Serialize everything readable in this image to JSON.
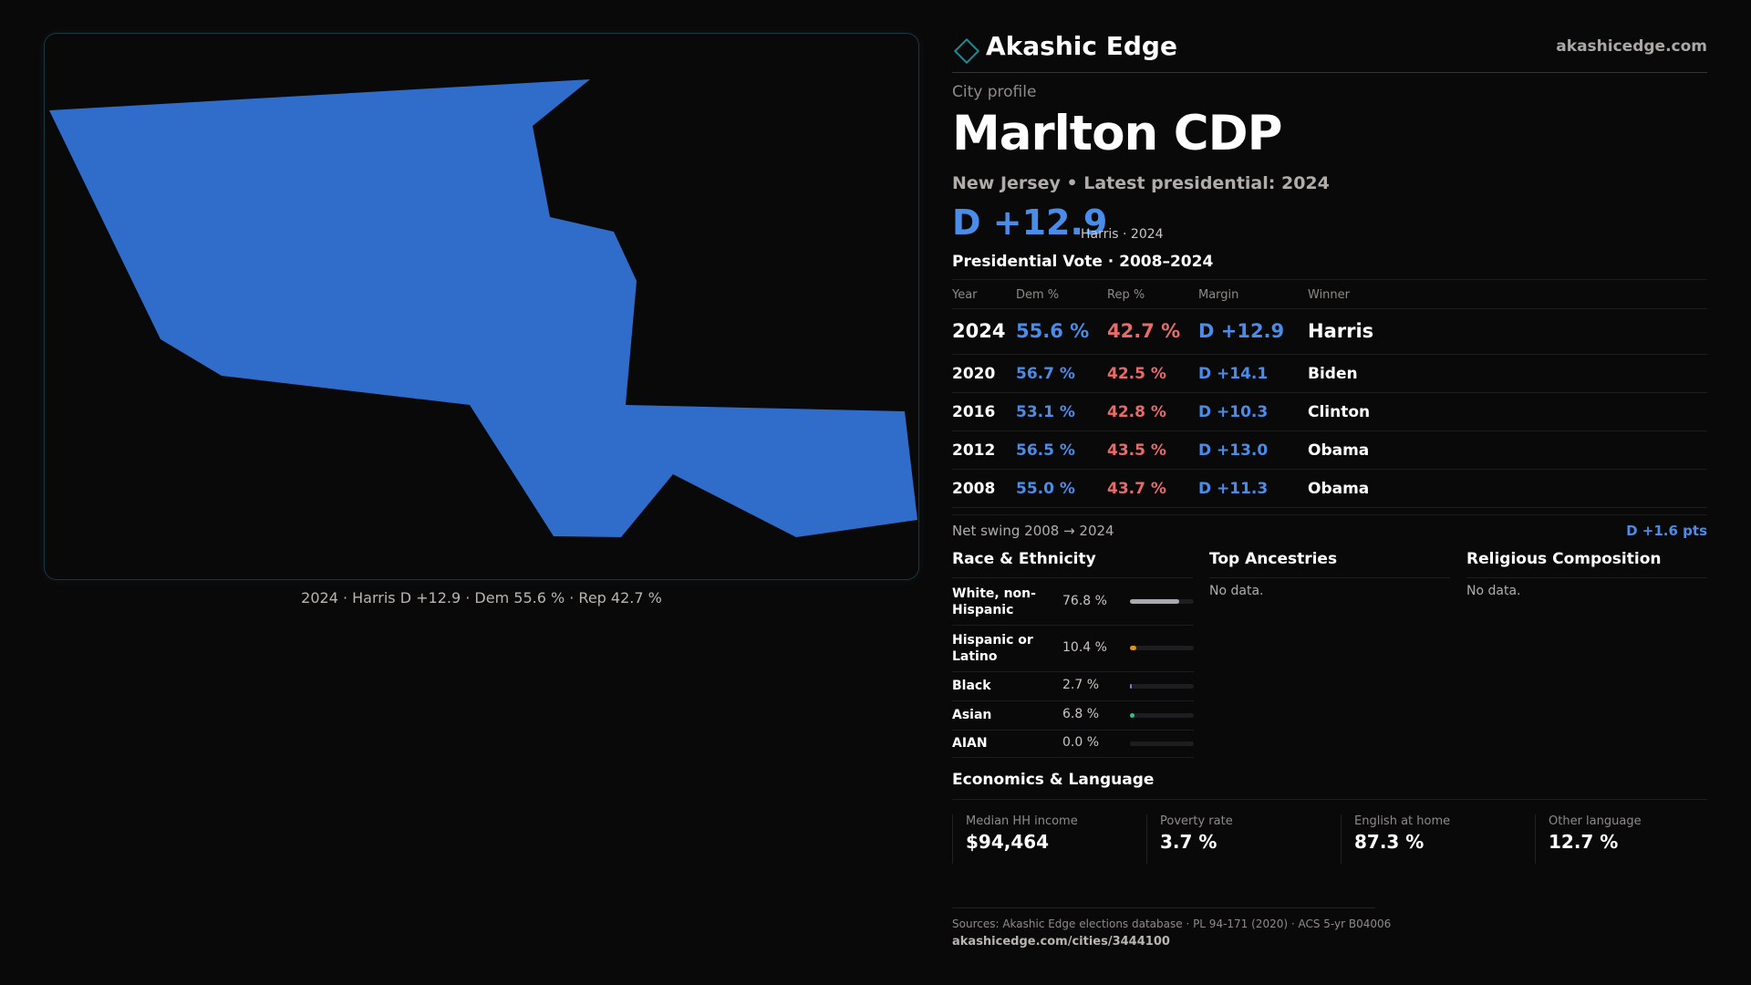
{
  "map": {
    "fill_color": "#306cca",
    "caption": "2024 · Harris D +12.9 · Dem 55.6 % · Rep 42.7 %"
  },
  "header": {
    "brand_icon": "diamond-icon",
    "brand_name": "Akashic Edge",
    "site_url": "akashicedge.com"
  },
  "profile": {
    "eyebrow": "City profile",
    "title": "Marlton CDP",
    "subtitle": "New Jersey • Latest presidential: 2024",
    "headline_margin": "D +12.9",
    "headline_note": "Harris · 2024"
  },
  "vote": {
    "section_title": "Presidential Vote · 2008–2024",
    "columns": [
      "Year",
      "Dem %",
      "Rep %",
      "Margin",
      "Winner"
    ],
    "rows": [
      {
        "year": "2024",
        "dem": "55.6 %",
        "rep": "42.7 %",
        "margin": "D +12.9",
        "winner": "Harris"
      },
      {
        "year": "2020",
        "dem": "56.7 %",
        "rep": "42.5 %",
        "margin": "D +14.1",
        "winner": "Biden"
      },
      {
        "year": "2016",
        "dem": "53.1 %",
        "rep": "42.8 %",
        "margin": "D +10.3",
        "winner": "Clinton"
      },
      {
        "year": "2012",
        "dem": "56.5 %",
        "rep": "43.5 %",
        "margin": "D +13.0",
        "winner": "Obama"
      },
      {
        "year": "2008",
        "dem": "55.0 %",
        "rep": "43.7 %",
        "margin": "D +11.3",
        "winner": "Obama"
      }
    ],
    "swing_label": "Net swing 2008 → 2024",
    "swing_value": "D +1.6 pts"
  },
  "race": {
    "title": "Race & Ethnicity",
    "rows": [
      {
        "label": "White, non-Hispanic",
        "value": "76.8 %",
        "pct": 76.8,
        "color": "#a9a9b1"
      },
      {
        "label": "Hispanic or Latino",
        "value": "10.4 %",
        "pct": 10.4,
        "color": "#e0901e"
      },
      {
        "label": "Black",
        "value": "2.7 %",
        "pct": 2.7,
        "color": "#8a78d8"
      },
      {
        "label": "Asian",
        "value": "6.8 %",
        "pct": 6.8,
        "color": "#2fbf8a"
      },
      {
        "label": "AIAN",
        "value": "0.0 %",
        "pct": 0.0,
        "color": "#c0a060"
      }
    ]
  },
  "ancestries": {
    "title": "Top Ancestries",
    "empty": "No data."
  },
  "religion": {
    "title": "Religious Composition",
    "empty": "No data."
  },
  "economics": {
    "title": "Economics & Language",
    "cells": [
      {
        "label": "Median HH income",
        "value": "$94,464"
      },
      {
        "label": "Poverty rate",
        "value": "3.7 %"
      },
      {
        "label": "English at home",
        "value": "87.3 %"
      },
      {
        "label": "Other language",
        "value": "12.7 %"
      }
    ]
  },
  "footer": {
    "sources": "Sources: Akashic Edge elections database · PL 94-171 (2020) · ACS 5-yr B04006",
    "url": "akashicedge.com/cities/3444100"
  }
}
